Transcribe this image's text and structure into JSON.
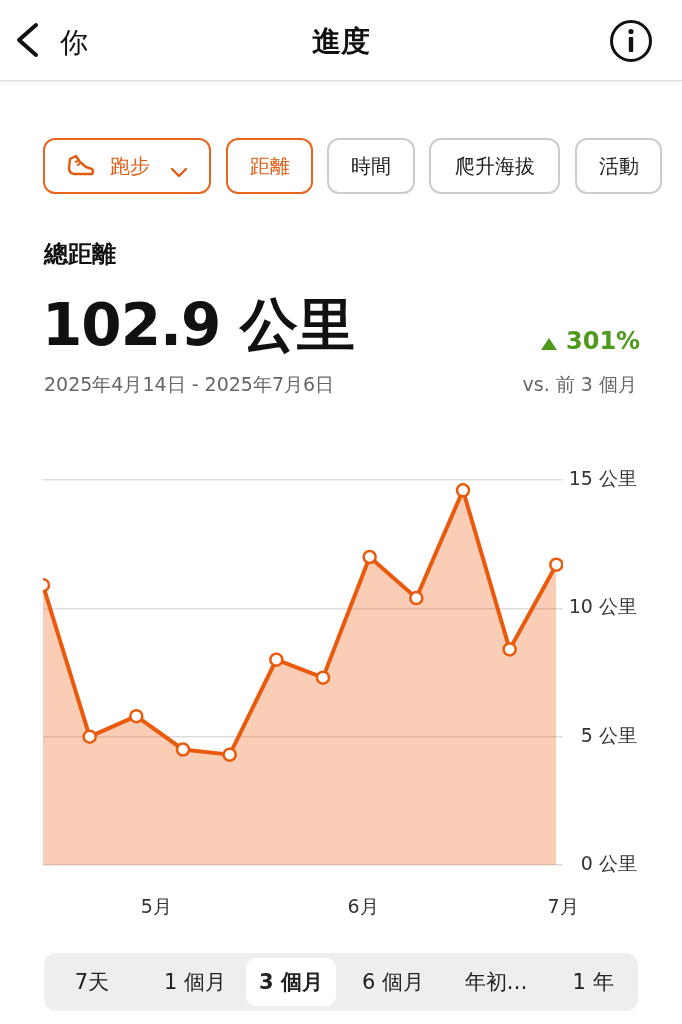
{
  "chart_data": {
    "type": "area",
    "title": "總距離",
    "subtitle": "102.9 公里",
    "annotations": [
      "你",
      "進度",
      "跑步",
      "距離",
      "時間",
      "爬升海拔",
      "活動",
      "301%",
      "2025年4月14日 - 2025年7月6日",
      "vs. 前 3 個月",
      "7天",
      "1 個月",
      "3 個月",
      "6 個月",
      "年初…",
      "1 年"
    ],
    "x": [
      "2025-04-14",
      "2025-04-21",
      "2025-04-28",
      "2025-05-05",
      "2025-05-12",
      "2025-05-19",
      "2025-05-26",
      "2025-06-02",
      "2025-06-09",
      "2025-06-16",
      "2025-06-23",
      "2025-06-30"
    ],
    "series": [
      {
        "color": "#ea5a0c",
        "values": [
          10.9,
          5.0,
          5.8,
          4.5,
          4.3,
          8.0,
          7.3,
          12.0,
          10.4,
          14.6,
          8.4,
          11.7
        ]
      }
    ],
    "xlim": [
      "2025-04-14",
      "2025-07-01"
    ],
    "xticks": [
      {
        "value": "2025-05-01",
        "label": "5月"
      },
      {
        "value": "2025-06-01",
        "label": "6月"
      },
      {
        "value": "2025-07-01",
        "label": "7月"
      }
    ],
    "ylim": [
      0,
      15
    ],
    "yticks": [
      {
        "value": 0,
        "label": "0 公里"
      },
      {
        "value": 5,
        "label": "5 公里"
      },
      {
        "value": 10,
        "label": "10 公里"
      },
      {
        "value": 15,
        "label": "15 公里"
      }
    ],
    "grid": "y",
    "legend": false,
    "marker": "circle",
    "line_style": "solid"
  }
}
